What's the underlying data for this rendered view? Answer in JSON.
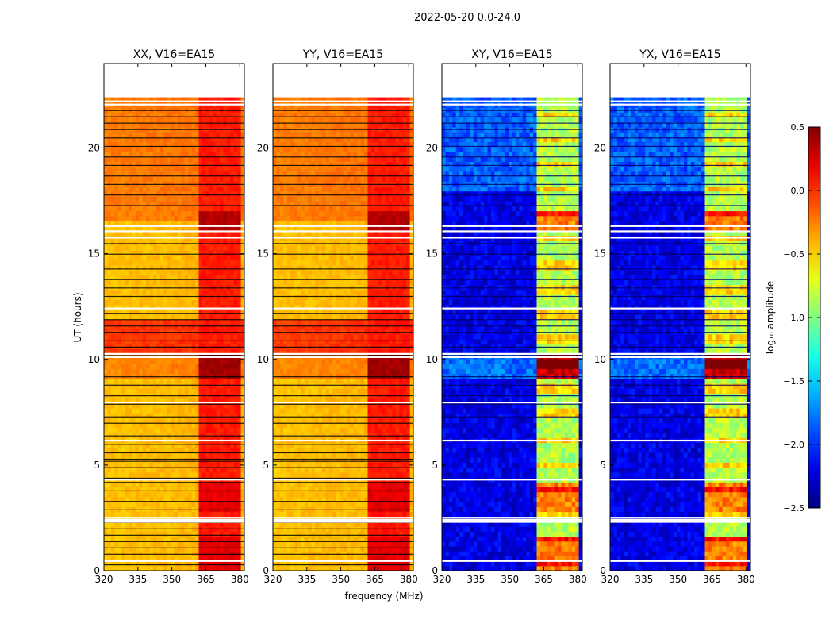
{
  "suptitle": "2022-05-20 0.0-24.0",
  "xlabel": "frequency (MHz)",
  "ylabel": "UT (hours)",
  "colorbar": {
    "label": "log₁₀ amplitude",
    "ticks": [
      0.5,
      0.0,
      -0.5,
      -1.0,
      -1.5,
      -2.0,
      -2.5
    ],
    "tick_labels": [
      "0.5",
      "0.0",
      "−0.5",
      "−1.0",
      "−1.5",
      "−2.0",
      "−2.5"
    ],
    "range": [
      -2.5,
      0.5
    ],
    "colormap": "jet"
  },
  "chart_data": [
    {
      "type": "heatmap",
      "title": "XX, V16=EA15",
      "kind": "parallel",
      "xlim": [
        320,
        382
      ],
      "ylim": [
        0,
        24
      ],
      "xticks": [
        320,
        335,
        350,
        365,
        380
      ],
      "xtick_labels": [
        "320",
        "335",
        "350",
        "365",
        "380"
      ],
      "yticks": [
        0,
        5,
        10,
        15,
        20
      ],
      "ytick_labels": [
        "0",
        "5",
        "10",
        "15",
        "20"
      ]
    },
    {
      "type": "heatmap",
      "title": "YY, V16=EA15",
      "kind": "parallel",
      "xlim": [
        320,
        382
      ],
      "ylim": [
        0,
        24
      ],
      "xticks": [
        320,
        335,
        350,
        365,
        380
      ],
      "xtick_labels": [
        "320",
        "335",
        "350",
        "365",
        "380"
      ],
      "yticks": [
        0,
        5,
        10,
        15,
        20
      ],
      "ytick_labels": [
        "0",
        "5",
        "10",
        "15",
        "20"
      ]
    },
    {
      "type": "heatmap",
      "title": "XY, V16=EA15",
      "kind": "cross",
      "xlim": [
        320,
        382
      ],
      "ylim": [
        0,
        24
      ],
      "xticks": [
        320,
        335,
        350,
        365,
        380
      ],
      "xtick_labels": [
        "320",
        "335",
        "350",
        "365",
        "380"
      ],
      "yticks": [
        0,
        5,
        10,
        15,
        20
      ],
      "ytick_labels": [
        "0",
        "5",
        "10",
        "15",
        "20"
      ]
    },
    {
      "type": "heatmap",
      "title": "YX, V16=EA15",
      "kind": "cross",
      "xlim": [
        320,
        382
      ],
      "ylim": [
        0,
        24
      ],
      "xticks": [
        320,
        335,
        350,
        365,
        380
      ],
      "xtick_labels": [
        "320",
        "335",
        "350",
        "365",
        "380"
      ],
      "yticks": [
        0,
        5,
        10,
        15,
        20
      ],
      "ytick_labels": [
        "0",
        "5",
        "10",
        "15",
        "20"
      ]
    }
  ]
}
